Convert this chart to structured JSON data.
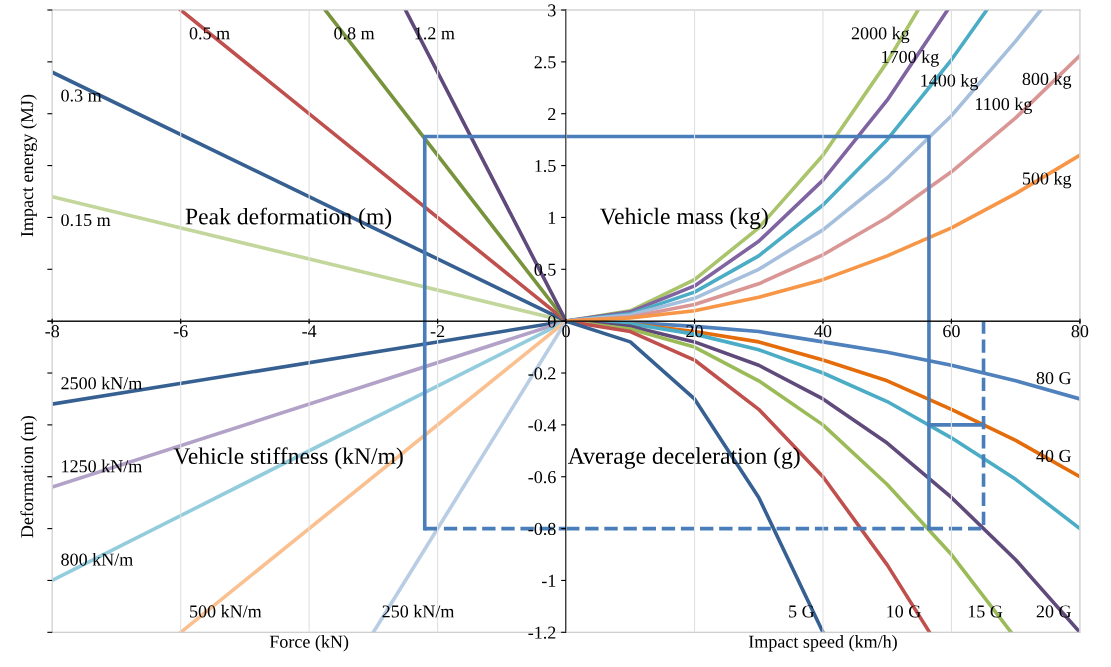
{
  "chart_data": [
    {
      "type": "line",
      "xlim": [
        -8,
        0
      ],
      "ylim": [
        0,
        3
      ],
      "xticks": [
        -8,
        -6,
        -4,
        -2,
        0
      ],
      "yticks": [
        0,
        0.5,
        1,
        1.5,
        2,
        2.5,
        3
      ],
      "tick_labels": false,
      "grid": "x",
      "legend": false,
      "ylabel": "Impact energy (MJ)",
      "annotations": [
        "Peak deformation (m)"
      ],
      "series": [
        {
          "name": "0.15 m",
          "color": "#c3d69b",
          "x": [
            -8,
            0
          ],
          "values": [
            1.2,
            0
          ]
        },
        {
          "name": "0.3 m",
          "color": "#376092",
          "x": [
            -8,
            0
          ],
          "values": [
            2.4,
            0
          ]
        },
        {
          "name": "0.5 m",
          "color": "#c0504d",
          "x": [
            -6,
            0
          ],
          "values": [
            3,
            0
          ]
        },
        {
          "name": "0.8 m",
          "color": "#77933c",
          "x": [
            -3.75,
            0
          ],
          "values": [
            3,
            0
          ]
        },
        {
          "name": "1.2 m",
          "color": "#604a7b",
          "x": [
            -2.5,
            0
          ],
          "values": [
            3,
            0
          ]
        },
        {
          "color": "#4a7ebb",
          "x": [
            0,
            -2.2,
            -2.2
          ],
          "values": [
            1.78,
            1.78,
            0
          ],
          "line_style": "solid"
        }
      ]
    },
    {
      "type": "line",
      "xlim": [
        0,
        80
      ],
      "ylim": [
        0,
        3
      ],
      "xticks": [
        0,
        20,
        40,
        60,
        80
      ],
      "yticks": [
        0,
        0.5,
        1,
        1.5,
        2,
        2.5,
        3
      ],
      "tick_labels": "y",
      "grid": "x",
      "legend": false,
      "annotations": [
        "Vehicle mass (kg)"
      ],
      "series": [
        {
          "name": "2000 kg",
          "color": "#a9c46b",
          "x": [
            54.8,
            50,
            40,
            30,
            20,
            10,
            0
          ],
          "values": [
            3,
            2.5,
            1.6,
            0.9,
            0.4,
            0.1,
            0
          ]
        },
        {
          "name": "1700 kg",
          "color": "#8064a2",
          "x": [
            59.4,
            50,
            40,
            30,
            20,
            10,
            0
          ],
          "values": [
            3,
            2.13,
            1.36,
            0.77,
            0.34,
            0.09,
            0
          ]
        },
        {
          "name": "1400 kg",
          "color": "#4bacc6",
          "x": [
            65.5,
            60,
            50,
            40,
            30,
            20,
            10,
            0
          ],
          "values": [
            3,
            2.52,
            1.75,
            1.12,
            0.63,
            0.28,
            0.07,
            0
          ]
        },
        {
          "name": "1100 kg",
          "color": "#a6bfdd",
          "x": [
            73.9,
            70,
            60,
            50,
            40,
            30,
            20,
            10,
            0
          ],
          "values": [
            3,
            2.7,
            1.98,
            1.38,
            0.88,
            0.5,
            0.22,
            0.06,
            0
          ]
        },
        {
          "name": "800 kg",
          "color": "#d99694",
          "x": [
            80,
            70,
            60,
            50,
            40,
            30,
            20,
            10,
            0
          ],
          "values": [
            2.56,
            1.96,
            1.44,
            1.0,
            0.64,
            0.36,
            0.16,
            0.04,
            0
          ]
        },
        {
          "name": "500 kg",
          "color": "#f79646",
          "x": [
            80,
            70,
            60,
            50,
            40,
            30,
            20,
            10,
            0
          ],
          "values": [
            1.6,
            1.23,
            0.9,
            0.63,
            0.4,
            0.23,
            0.1,
            0.03,
            0
          ]
        },
        {
          "color": "#4a7ebb",
          "x": [
            0,
            56.5,
            56.5
          ],
          "values": [
            1.78,
            1.78,
            0
          ],
          "line_style": "solid"
        }
      ]
    },
    {
      "type": "line",
      "xlim": [
        -8,
        0
      ],
      "ylim": [
        -1.2,
        0
      ],
      "xticks": [
        -8,
        -6,
        -4,
        -2
      ],
      "yticks": [
        -1.2,
        -1,
        -0.8,
        -0.6,
        -0.4,
        -0.2,
        0
      ],
      "tick_labels": "x",
      "grid": "x",
      "legend": false,
      "ylabel": "Deformation (m)",
      "xlabel": "Force (kN)",
      "annotations": [
        "Vehicle stiffness (kN/m)"
      ],
      "series": [
        {
          "name": "2500 kN/m",
          "color": "#376092",
          "x": [
            -8,
            0
          ],
          "values": [
            -0.32,
            0
          ]
        },
        {
          "name": "1250 kN/m",
          "color": "#b3a2c7",
          "x": [
            -8,
            0
          ],
          "values": [
            -0.64,
            0
          ]
        },
        {
          "name": "800 kN/m",
          "color": "#93cddd",
          "x": [
            -8,
            0
          ],
          "values": [
            -1.0,
            0
          ]
        },
        {
          "name": "500 kN/m",
          "color": "#fac090",
          "x": [
            -6,
            0
          ],
          "values": [
            -1.2,
            0
          ]
        },
        {
          "name": "250 kN/m",
          "color": "#b9cde5",
          "x": [
            -3,
            0
          ],
          "values": [
            -1.2,
            0
          ]
        },
        {
          "color": "#4a7ebb",
          "x": [
            -2.2,
            -2.2
          ],
          "values": [
            0,
            -0.8
          ],
          "line_style": "solid"
        },
        {
          "color": "#4a7ebb",
          "x": [
            -2.2,
            0
          ],
          "values": [
            -0.8,
            -0.8
          ],
          "line_style": "dashed"
        }
      ]
    },
    {
      "type": "line",
      "xlim": [
        0,
        80
      ],
      "ylim": [
        -1.2,
        0
      ],
      "xticks": [
        0,
        20,
        40,
        60,
        80
      ],
      "yticks": [
        -1.2,
        -1,
        -0.8,
        -0.6,
        -0.4,
        -0.2
      ],
      "grid": "x",
      "legend": false,
      "xlabel": "Impact speed (km/h)",
      "annotations": [
        "Average deceleration (g)"
      ],
      "series": [
        {
          "name": "80 G",
          "color": "#4f81bd",
          "x": [
            80,
            70,
            60,
            50,
            40,
            30,
            20,
            10,
            0
          ],
          "values": [
            -0.3,
            -0.23,
            -0.17,
            -0.12,
            -0.08,
            -0.04,
            -0.02,
            -0.005,
            0
          ]
        },
        {
          "name": "40 G",
          "color": "#e46c0a",
          "x": [
            80,
            70,
            60,
            50,
            40,
            30,
            20,
            10,
            0
          ],
          "values": [
            -0.6,
            -0.46,
            -0.34,
            -0.23,
            -0.15,
            -0.08,
            -0.04,
            -0.01,
            0
          ]
        },
        {
          "color": "#4bacc6",
          "x": [
            80,
            70,
            60,
            50,
            40,
            30,
            20,
            10,
            0
          ],
          "values": [
            -0.8,
            -0.61,
            -0.45,
            -0.31,
            -0.2,
            -0.11,
            -0.05,
            -0.01,
            0
          ]
        },
        {
          "name": "20 G",
          "color": "#604a7b",
          "x": [
            80,
            70,
            60,
            50,
            40,
            30,
            20,
            10,
            0
          ],
          "values": [
            -1.2,
            -0.92,
            -0.68,
            -0.47,
            -0.3,
            -0.17,
            -0.08,
            -0.02,
            0
          ]
        },
        {
          "name": "15 G",
          "color": "#9bbb59",
          "x": [
            69.3,
            60,
            50,
            40,
            30,
            20,
            10,
            0
          ],
          "values": [
            -1.2,
            -0.9,
            -0.63,
            -0.4,
            -0.23,
            -0.1,
            -0.03,
            0
          ]
        },
        {
          "name": "10 G",
          "color": "#c0504d",
          "x": [
            56.6,
            50,
            40,
            30,
            20,
            10,
            0
          ],
          "values": [
            -1.2,
            -0.94,
            -0.6,
            -0.34,
            -0.15,
            -0.04,
            0
          ]
        },
        {
          "name": "5 G",
          "color": "#366092",
          "x": [
            40,
            30,
            20,
            10,
            0
          ],
          "values": [
            -1.2,
            -0.68,
            -0.3,
            -0.08,
            0
          ]
        },
        {
          "color": "#4a7ebb",
          "x": [
            56.5,
            56.5
          ],
          "values": [
            0,
            -0.8
          ],
          "line_style": "solid"
        },
        {
          "color": "#4a7ebb",
          "x": [
            56.5,
            65
          ],
          "values": [
            -0.4,
            -0.4
          ],
          "line_style": "solid"
        },
        {
          "color": "#4a7ebb",
          "x": [
            0,
            65,
            65
          ],
          "values": [
            -0.8,
            -0.8,
            0
          ],
          "line_style": "dashed"
        }
      ]
    }
  ]
}
